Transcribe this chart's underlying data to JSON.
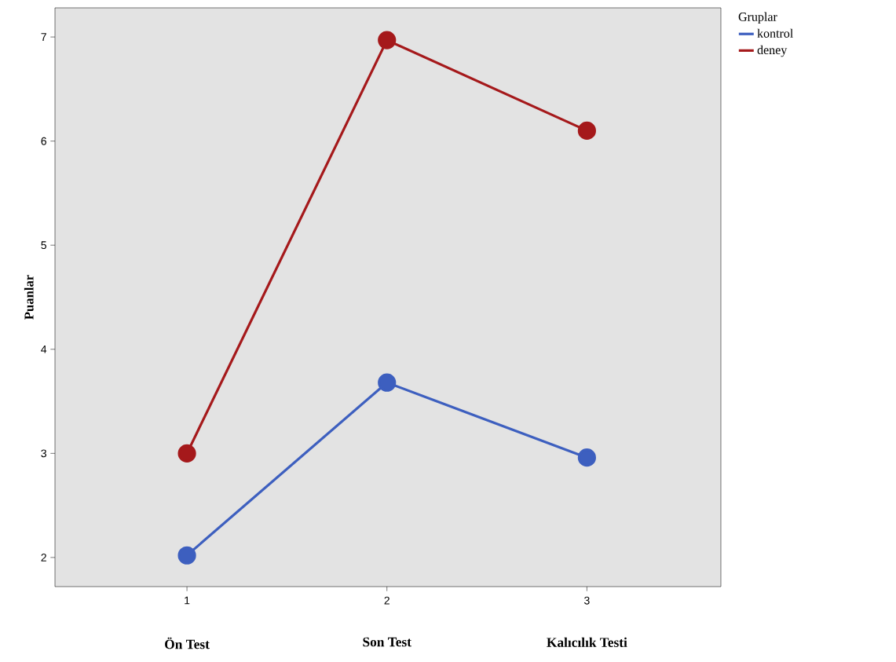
{
  "chart_data": {
    "type": "line",
    "ylabel": "Puanlar",
    "legend_title": "Gruplar",
    "categories": [
      "Ön Test",
      "Son Test",
      "Kalıcılık Testi"
    ],
    "annotations": [
      "1",
      "2",
      "3"
    ],
    "ylim": [
      1.72,
      7.28
    ],
    "yticks": [
      2,
      3,
      4,
      5,
      6,
      7
    ],
    "series": [
      {
        "name": "kontrol",
        "color": "#3d5fbf",
        "values": [
          2.02,
          3.68,
          2.96
        ]
      },
      {
        "name": "deney",
        "color": "#a5191b",
        "values": [
          3.0,
          6.97,
          6.1
        ]
      }
    ],
    "marker": "circle",
    "line_style": "solid",
    "grid": false,
    "legend": "top right"
  }
}
